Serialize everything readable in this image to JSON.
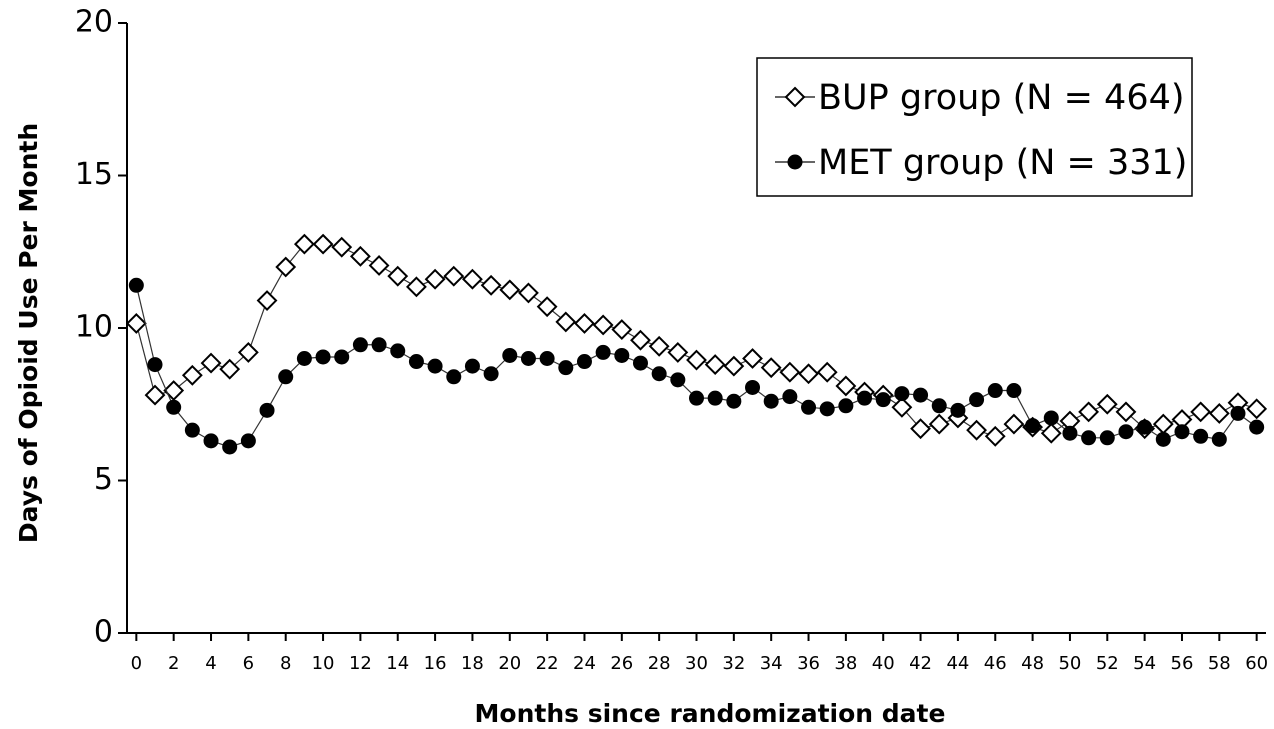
{
  "chart_data": {
    "type": "line",
    "y_label": "Days of Opioid Use Per Month",
    "x_label": "Months since randomization date",
    "x": [
      0,
      1,
      2,
      3,
      4,
      5,
      6,
      7,
      8,
      9,
      10,
      11,
      12,
      13,
      14,
      15,
      16,
      17,
      18,
      19,
      20,
      21,
      22,
      23,
      24,
      25,
      26,
      27,
      28,
      29,
      30,
      31,
      32,
      33,
      34,
      35,
      36,
      37,
      38,
      39,
      40,
      41,
      42,
      43,
      44,
      45,
      46,
      47,
      48,
      49,
      50,
      51,
      52,
      53,
      54,
      55,
      56,
      57,
      58,
      59,
      60
    ],
    "series": [
      {
        "name": "BUP group (N = 464)",
        "color": "#000000",
        "marker": "diamond-open",
        "values": [
          10.15,
          7.8,
          7.95,
          8.45,
          8.85,
          8.65,
          9.2,
          10.9,
          12.0,
          12.75,
          12.75,
          12.65,
          12.35,
          12.05,
          11.7,
          11.35,
          11.6,
          11.7,
          11.6,
          11.4,
          11.25,
          11.15,
          10.7,
          10.2,
          10.15,
          10.1,
          9.95,
          9.6,
          9.4,
          9.2,
          8.95,
          8.8,
          8.75,
          9.0,
          8.7,
          8.55,
          8.5,
          8.55,
          8.1,
          7.9,
          7.8,
          7.4,
          6.7,
          6.85,
          7.05,
          6.65,
          6.45,
          6.85,
          6.75,
          6.55,
          6.95,
          7.25,
          7.5,
          7.25,
          6.7,
          6.85,
          7.0,
          7.25,
          7.2,
          7.55,
          7.35
        ]
      },
      {
        "name": "MET group (N = 331)",
        "color": "#000000",
        "marker": "circle-filled",
        "values": [
          11.4,
          8.8,
          7.4,
          6.65,
          6.3,
          6.1,
          6.3,
          7.3,
          8.4,
          9.0,
          9.05,
          9.05,
          9.45,
          9.45,
          9.25,
          8.9,
          8.75,
          8.4,
          8.75,
          8.5,
          9.1,
          9.0,
          9.0,
          8.7,
          8.9,
          9.2,
          9.1,
          8.85,
          8.5,
          8.3,
          7.7,
          7.7,
          7.6,
          8.05,
          7.6,
          7.75,
          7.4,
          7.35,
          7.45,
          7.7,
          7.65,
          7.85,
          7.8,
          7.45,
          7.3,
          7.65,
          7.95,
          7.95,
          6.8,
          7.05,
          6.55,
          6.4,
          6.4,
          6.6,
          6.75,
          6.35,
          6.6,
          6.45,
          6.35,
          7.2,
          6.75
        ]
      }
    ],
    "xlim": [
      -0.5,
      60.5
    ],
    "xticks": [
      0,
      2,
      4,
      6,
      8,
      10,
      12,
      14,
      16,
      18,
      20,
      22,
      24,
      26,
      28,
      30,
      32,
      34,
      36,
      38,
      40,
      42,
      44,
      46,
      48,
      50,
      52,
      54,
      56,
      58,
      60
    ],
    "ylim": [
      0,
      20
    ],
    "yticks": [
      0,
      5,
      10,
      15,
      20
    ],
    "legend": "top-right"
  }
}
